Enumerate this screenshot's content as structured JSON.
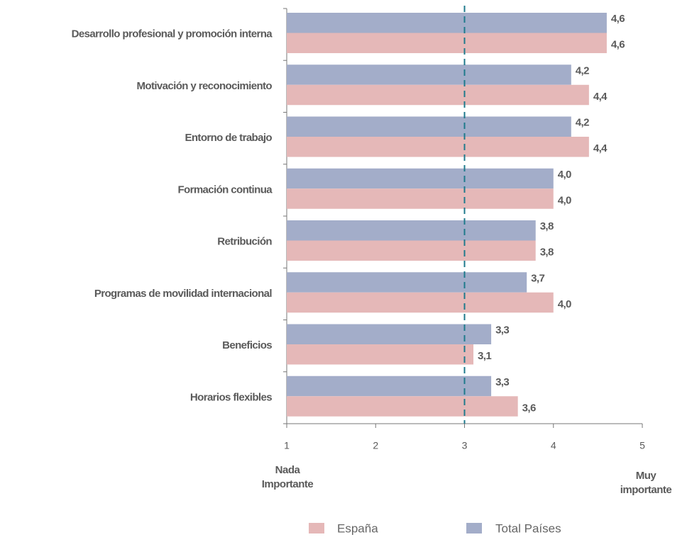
{
  "chart_data": {
    "type": "bar",
    "orientation": "horizontal",
    "categories": [
      "Desarrollo profesional y promoción interna",
      "Motivación y reconocimiento",
      "Entorno de trabajo",
      "Formación continua",
      "Retribución",
      "Programas de movilidad internacional",
      "Beneficios",
      "Horarios flexibles"
    ],
    "series": [
      {
        "name": "España",
        "color": "#e5b8b8",
        "values": [
          4.6,
          4.4,
          4.4,
          4.0,
          3.8,
          4.0,
          3.1,
          3.6
        ],
        "value_labels": [
          "4,6",
          "4,4",
          "4,4",
          "4,0",
          "3,8",
          "4,0",
          "3,1",
          "3,6"
        ]
      },
      {
        "name": "Total Países",
        "color": "#a3adc9",
        "values": [
          4.6,
          4.2,
          4.2,
          4.0,
          3.8,
          3.7,
          3.3,
          3.3
        ],
        "value_labels": [
          "4,6",
          "4,2",
          "4,2",
          "4,0",
          "3,8",
          "3,7",
          "3,3",
          "3,3"
        ]
      }
    ],
    "xlim": [
      1,
      5
    ],
    "xticks": [
      1,
      2,
      3,
      4,
      5
    ],
    "reference_line": {
      "value": 3,
      "color": "#1f7a8c"
    },
    "x_annotations": {
      "left": "Nada Importante",
      "right": "Muy importante"
    }
  }
}
